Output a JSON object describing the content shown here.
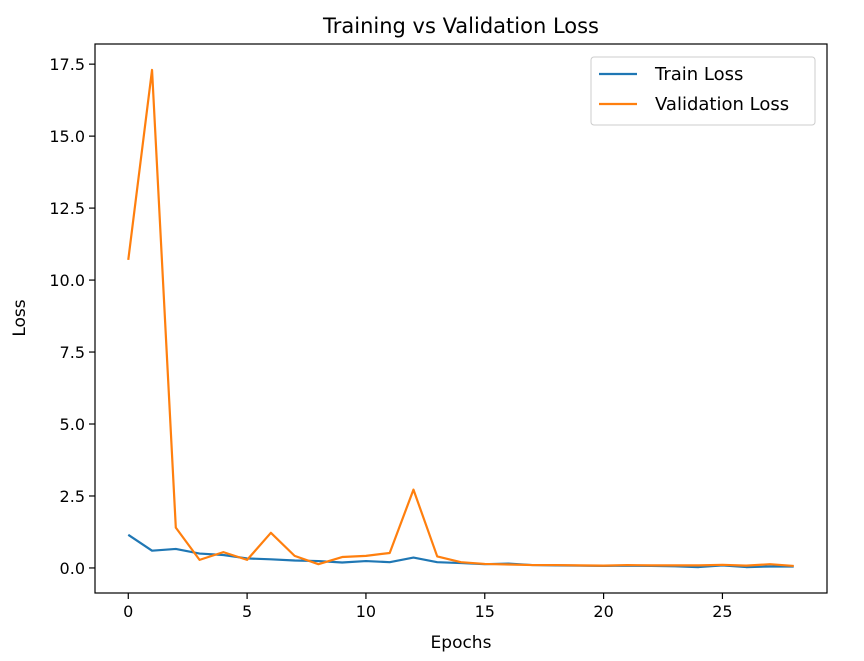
{
  "chart_data": {
    "type": "line",
    "title": "Training vs Validation Loss",
    "xlabel": "Epochs",
    "ylabel": "Loss",
    "xlim": [
      -1.4,
      29.4
    ],
    "ylim": [
      -0.87,
      18.2
    ],
    "xticks": [
      0,
      5,
      10,
      15,
      20,
      25
    ],
    "xtick_labels": [
      "0",
      "5",
      "10",
      "15",
      "20",
      "25"
    ],
    "yticks": [
      0,
      2.5,
      5,
      7.5,
      10,
      12.5,
      15,
      17.5
    ],
    "ytick_labels": [
      "0.0",
      "2.5",
      "5.0",
      "7.5",
      "10.0",
      "12.5",
      "15.0",
      "17.5"
    ],
    "grid": false,
    "legend_position": "top-right",
    "x": [
      0,
      1,
      2,
      3,
      4,
      5,
      6,
      7,
      8,
      9,
      10,
      11,
      12,
      13,
      14,
      15,
      16,
      17,
      18,
      19,
      20,
      21,
      22,
      23,
      24,
      25,
      26,
      27,
      28
    ],
    "series": [
      {
        "name": "Train Loss",
        "color": "#1f77b4",
        "values": [
          1.15,
          0.6,
          0.66,
          0.5,
          0.45,
          0.33,
          0.3,
          0.26,
          0.24,
          0.19,
          0.24,
          0.2,
          0.36,
          0.2,
          0.17,
          0.13,
          0.15,
          0.1,
          0.09,
          0.08,
          0.07,
          0.08,
          0.07,
          0.06,
          0.03,
          0.09,
          0.03,
          0.05,
          0.05
        ]
      },
      {
        "name": "Validation Loss",
        "color": "#ff7f0e",
        "values": [
          10.7,
          17.3,
          1.4,
          0.28,
          0.55,
          0.28,
          1.22,
          0.42,
          0.13,
          0.38,
          0.42,
          0.52,
          2.72,
          0.4,
          0.2,
          0.14,
          0.12,
          0.1,
          0.1,
          0.09,
          0.08,
          0.1,
          0.09,
          0.09,
          0.09,
          0.11,
          0.08,
          0.13,
          0.07
        ]
      }
    ]
  }
}
